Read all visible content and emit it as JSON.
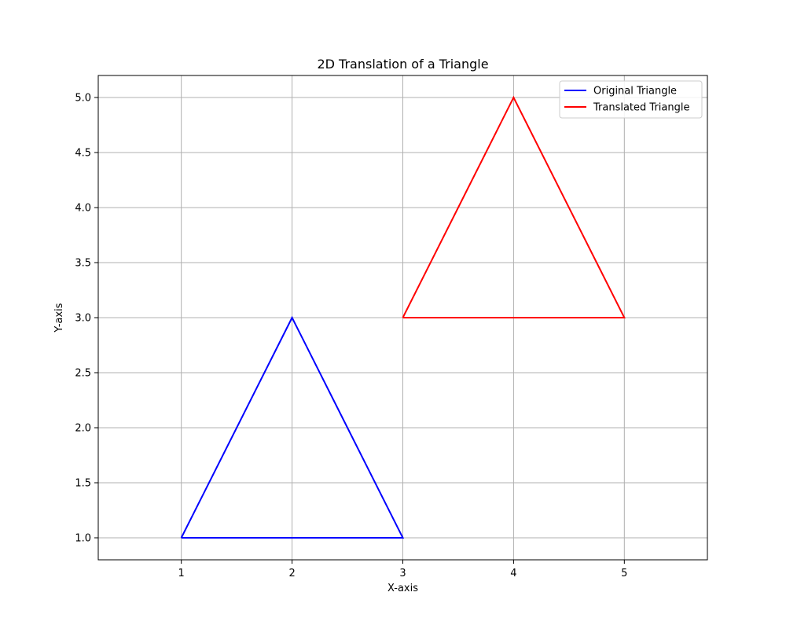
{
  "chart_data": {
    "type": "line",
    "title": "2D Translation of a Triangle",
    "xlabel": "X-axis",
    "ylabel": "Y-axis",
    "xlim": [
      0.25,
      5.75
    ],
    "ylim": [
      0.8,
      5.2
    ],
    "xticks": [
      1,
      2,
      3,
      4,
      5
    ],
    "xtick_labels": [
      "1",
      "2",
      "3",
      "4",
      "5"
    ],
    "yticks": [
      1.0,
      1.5,
      2.0,
      2.5,
      3.0,
      3.5,
      4.0,
      4.5,
      5.0
    ],
    "ytick_labels": [
      "1.0",
      "1.5",
      "2.0",
      "2.5",
      "3.0",
      "3.5",
      "4.0",
      "4.5",
      "5.0"
    ],
    "grid": true,
    "legend_position": "top-right",
    "series": [
      {
        "name": "Original Triangle",
        "color": "#0000ff",
        "x": [
          1,
          2,
          3,
          1
        ],
        "y": [
          1,
          3,
          1,
          1
        ]
      },
      {
        "name": "Translated Triangle",
        "color": "#ff0000",
        "x": [
          3,
          4,
          5,
          3
        ],
        "y": [
          3,
          5,
          3,
          3
        ]
      }
    ]
  }
}
